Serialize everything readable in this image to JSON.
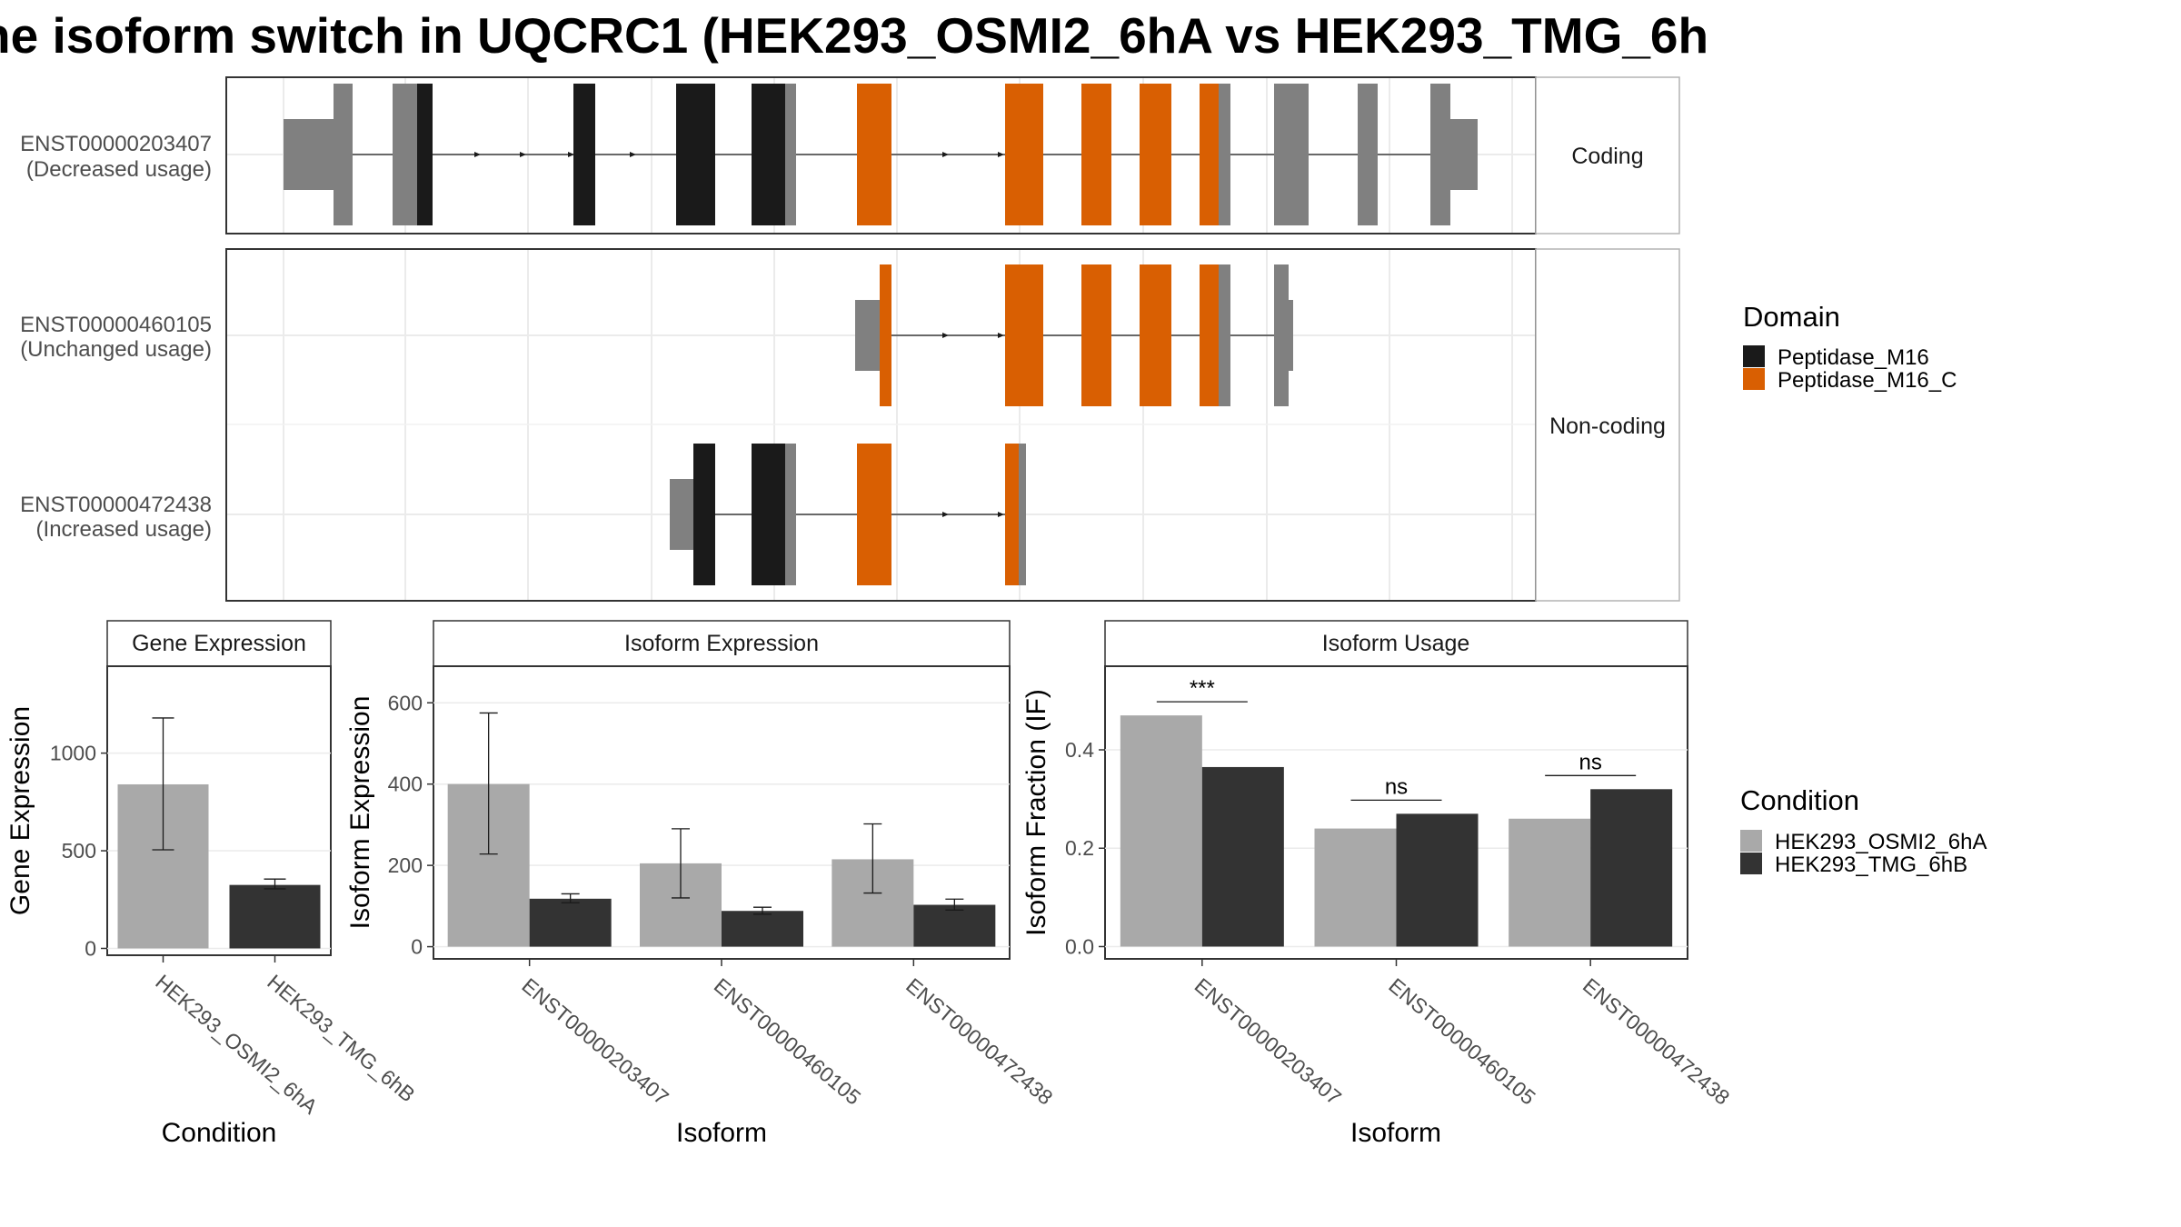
{
  "title": "ne isoform switch in UQCRC1 (HEK293_OSMI2_6hA vs HEK293_TMG_6h",
  "colors": {
    "peptidase_m16": "#1a1a1a",
    "peptidase_m16_c": "#d95f02",
    "utr_grey": "#808080",
    "cond_a": "#a9a9a9",
    "cond_b": "#333333"
  },
  "structure": {
    "facets": [
      {
        "label": "Coding"
      },
      {
        "label": "Non-coding"
      }
    ],
    "transcripts": [
      {
        "id": "ENST00000203407",
        "usage": "(Decreased usage)",
        "facet": 0
      },
      {
        "id": "ENST00000460105",
        "usage": "(Unchanged usage)",
        "facet": 1
      },
      {
        "id": "ENST00000472438",
        "usage": "(Increased usage)",
        "facet": 1
      }
    ]
  },
  "legend_domain": {
    "title": "Domain",
    "items": [
      {
        "label": "Peptidase_M16",
        "color": "#1a1a1a"
      },
      {
        "label": "Peptidase_M16_C",
        "color": "#d95f02"
      }
    ]
  },
  "legend_condition": {
    "title": "Condition",
    "items": [
      {
        "label": "HEK293_OSMI2_6hA",
        "color": "#a9a9a9"
      },
      {
        "label": "HEK293_TMG_6hB",
        "color": "#333333"
      }
    ]
  },
  "chart_data": [
    {
      "type": "bar",
      "title": "Gene Expression",
      "xlabel": "Condition",
      "ylabel": "Gene Expression",
      "categories": [
        "HEK293_OSMI2_6hA",
        "HEK293_TMG_6hB"
      ],
      "values": [
        840,
        325
      ],
      "error": [
        [
          505,
          1180
        ],
        [
          305,
          355
        ]
      ],
      "ylim": [
        -35,
        1445
      ],
      "yticks": [
        0,
        500,
        1000
      ]
    },
    {
      "type": "bar",
      "title": "Isoform Expression",
      "xlabel": "Isoform",
      "ylabel": "Isoform Expression",
      "categories": [
        "ENST00000203407",
        "ENST00000460105",
        "ENST00000472438"
      ],
      "series": [
        {
          "name": "HEK293_OSMI2_6hA",
          "values": [
            400,
            205,
            215
          ],
          "error": [
            [
              228,
              575
            ],
            [
              120,
              290
            ],
            [
              132,
              302
            ]
          ]
        },
        {
          "name": "HEK293_TMG_6hB",
          "values": [
            118,
            88,
            103
          ],
          "error": [
            [
              108,
              130
            ],
            [
              80,
              97
            ],
            [
              90,
              117
            ]
          ]
        }
      ],
      "ylim": [
        -30,
        690
      ],
      "yticks": [
        0,
        200,
        400,
        600
      ]
    },
    {
      "type": "bar",
      "title": "Isoform Usage",
      "xlabel": "Isoform",
      "ylabel": "Isoform Fraction (IF)",
      "categories": [
        "ENST00000203407",
        "ENST00000460105",
        "ENST00000472438"
      ],
      "series": [
        {
          "name": "HEK293_OSMI2_6hA",
          "values": [
            0.47,
            0.24,
            0.26
          ]
        },
        {
          "name": "HEK293_TMG_6hB",
          "values": [
            0.365,
            0.27,
            0.32
          ]
        }
      ],
      "significance": [
        "***",
        "ns",
        "ns"
      ],
      "ylim": [
        -0.025,
        0.57
      ],
      "yticks": [
        0.0,
        0.2,
        0.4
      ]
    }
  ]
}
